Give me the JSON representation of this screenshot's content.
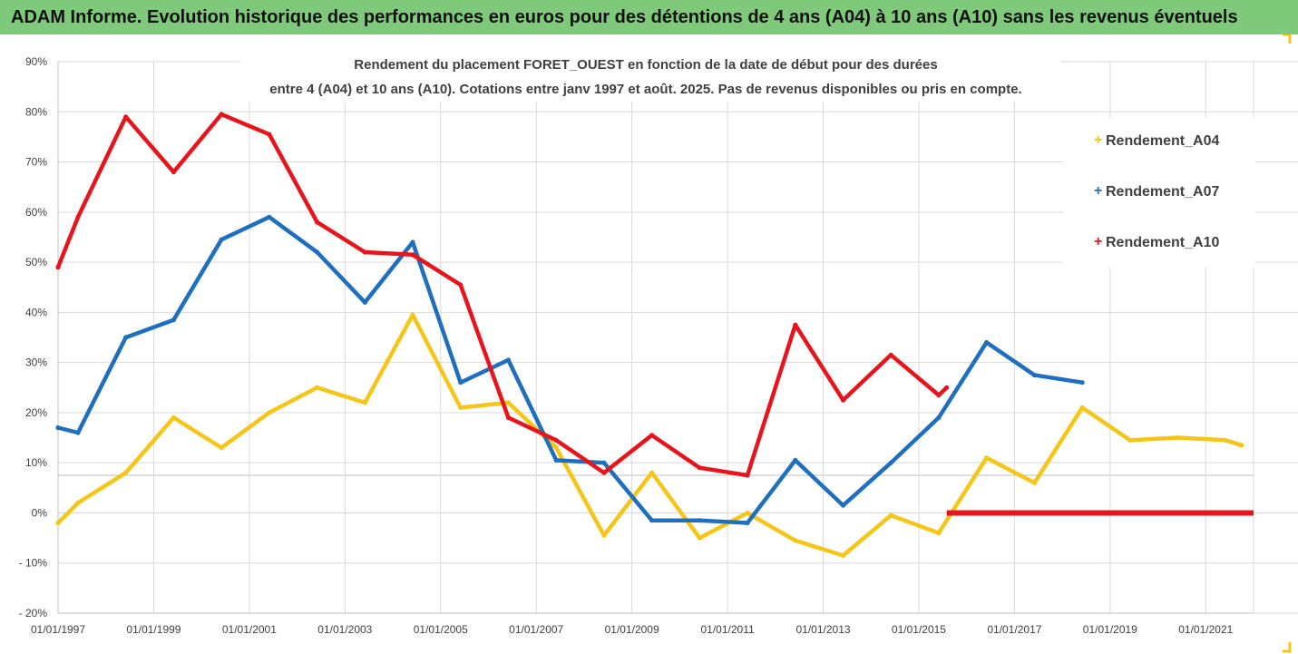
{
  "header": {
    "title": "ADAM Informe. Evolution historique des performances en euros pour des détentions de 4 ans (A04) à 10 ans (A10) sans les revenus éventuels"
  },
  "chart_data": {
    "type": "line",
    "title_lines": [
      "Rendement du placement FORET_OUEST en fonction de la date de début pour des durées",
      "entre 4 (A04) et 10 ans (A10). Cotations entre janv 1997 et août. 2025. Pas de revenus disponibles ou pris en compte."
    ],
    "y_ticks": [
      "90%",
      "80%",
      "70%",
      "60%",
      "50%",
      "40%",
      "30%",
      "20%",
      "10%",
      "0%",
      "- 10%",
      "- 20%"
    ],
    "ylim": [
      -20,
      90
    ],
    "x_ticks": [
      "01/01/1997",
      "01/01/1999",
      "01/01/2001",
      "01/01/2003",
      "01/01/2005",
      "01/01/2007",
      "01/01/2009",
      "01/01/2011",
      "01/01/2013",
      "01/01/2015",
      "01/01/2017",
      "01/01/2019",
      "01/01/2021"
    ],
    "xlim": [
      "01/01/1997",
      "01/01/2022"
    ],
    "grid": true,
    "legend_position": "top-right",
    "series": [
      {
        "name": "Rendement_A04",
        "color": "#f5c518",
        "points": [
          [
            "1997-01",
            -2
          ],
          [
            "1997-06",
            2
          ],
          [
            "1998-06",
            8
          ],
          [
            "1999-06",
            19
          ],
          [
            "2000-06",
            13
          ],
          [
            "2001-06",
            20
          ],
          [
            "2002-06",
            25
          ],
          [
            "2003-06",
            22
          ],
          [
            "2004-06",
            39.5
          ],
          [
            "2005-06",
            21
          ],
          [
            "2006-06",
            22
          ],
          [
            "2007-06",
            13
          ],
          [
            "2008-06",
            -4.5
          ],
          [
            "2009-06",
            8
          ],
          [
            "2010-06",
            -5
          ],
          [
            "2011-06",
            0
          ],
          [
            "2012-06",
            -5.5
          ],
          [
            "2013-06",
            -8.5
          ],
          [
            "2014-06",
            -0.5
          ],
          [
            "2015-06",
            -4
          ],
          [
            "2016-06",
            11
          ],
          [
            "2017-06",
            6
          ],
          [
            "2018-06",
            21
          ],
          [
            "2019-06",
            14.5
          ],
          [
            "2020-06",
            15
          ],
          [
            "2021-06",
            14.5
          ],
          [
            "2021-10",
            13.5
          ]
        ]
      },
      {
        "name": "Rendement_A07",
        "color": "#1f6fbf",
        "points": [
          [
            "1997-01",
            17
          ],
          [
            "1997-06",
            16
          ],
          [
            "1998-06",
            35
          ],
          [
            "1999-06",
            38.5
          ],
          [
            "2000-06",
            54.5
          ],
          [
            "2001-06",
            59
          ],
          [
            "2002-06",
            52
          ],
          [
            "2003-06",
            42
          ],
          [
            "2004-06",
            54
          ],
          [
            "2005-06",
            26
          ],
          [
            "2006-06",
            30.5
          ],
          [
            "2007-06",
            10.5
          ],
          [
            "2008-06",
            10
          ],
          [
            "2009-06",
            -1.5
          ],
          [
            "2010-06",
            -1.5
          ],
          [
            "2011-06",
            -2
          ],
          [
            "2012-06",
            10.5
          ],
          [
            "2013-06",
            1.5
          ],
          [
            "2014-06",
            10
          ],
          [
            "2015-06",
            19
          ],
          [
            "2016-06",
            34
          ],
          [
            "2017-06",
            27.5
          ],
          [
            "2018-06",
            26
          ]
        ]
      },
      {
        "name": "Rendement_A10",
        "color": "#e8141c",
        "points": [
          [
            "1997-01",
            49
          ],
          [
            "1997-06",
            59
          ],
          [
            "1998-06",
            79
          ],
          [
            "1999-06",
            68
          ],
          [
            "2000-06",
            79.5
          ],
          [
            "2001-06",
            75.5
          ],
          [
            "2002-06",
            58
          ],
          [
            "2003-06",
            52
          ],
          [
            "2004-06",
            51.5
          ],
          [
            "2005-06",
            45.5
          ],
          [
            "2006-06",
            19
          ],
          [
            "2007-06",
            14.5
          ],
          [
            "2008-06",
            8
          ],
          [
            "2009-06",
            15.5
          ],
          [
            "2010-06",
            9
          ],
          [
            "2011-06",
            7.5
          ],
          [
            "2012-06",
            37.5
          ],
          [
            "2013-06",
            22.5
          ],
          [
            "2014-06",
            31.5
          ],
          [
            "2015-06",
            23.5
          ],
          [
            "2015-08",
            25
          ]
        ],
        "zero_segment": [
          [
            "2015-08",
            0
          ],
          [
            "2022-01",
            0
          ]
        ]
      }
    ]
  }
}
